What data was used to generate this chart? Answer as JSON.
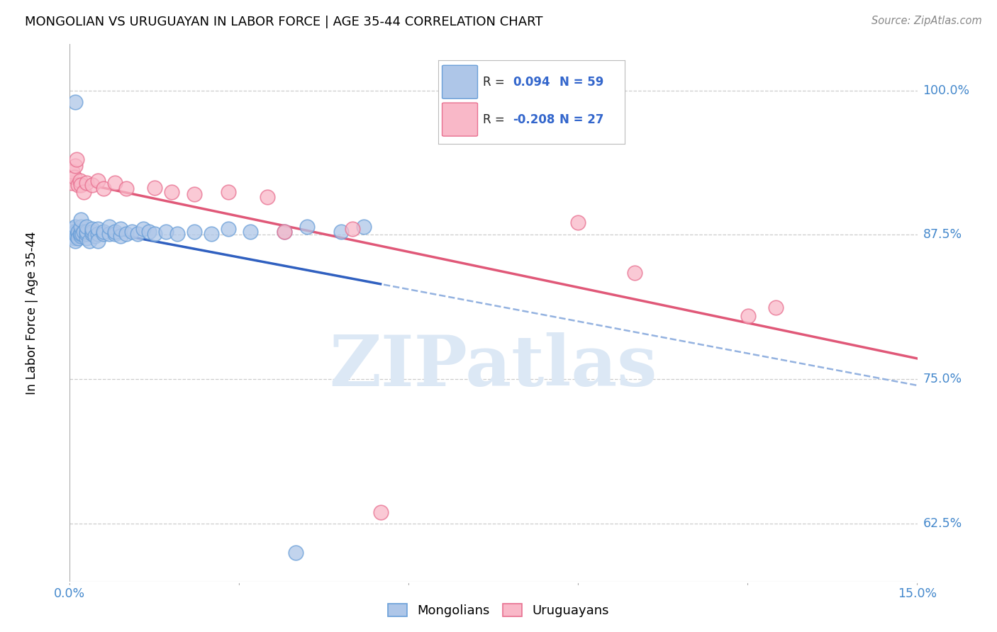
{
  "title": "MONGOLIAN VS URUGUAYAN IN LABOR FORCE | AGE 35-44 CORRELATION CHART",
  "source": "Source: ZipAtlas.com",
  "ylabel": "In Labor Force | Age 35-44",
  "yticks": [
    0.625,
    0.75,
    0.875,
    1.0
  ],
  "ytick_labels": [
    "62.5%",
    "75.0%",
    "87.5%",
    "100.0%"
  ],
  "xmin": 0.0,
  "xmax": 0.15,
  "ymin": 0.575,
  "ymax": 1.04,
  "R_mongolian": 0.094,
  "N_mongolian": 59,
  "R_uruguayan": -0.208,
  "N_uruguayan": 27,
  "mongolian_face": "#aec6e8",
  "mongolian_edge": "#6a9fd8",
  "uruguayan_face": "#f9b8c8",
  "uruguayan_edge": "#e87090",
  "line_mongolian_solid": "#3060c0",
  "line_mongolian_dash": "#88aadd",
  "line_uruguayan": "#e05878",
  "watermark_color": "#dce8f5",
  "legend_mongolian": "Mongolians",
  "legend_uruguayan": "Uruguayans",
  "mon_x": [
    0.0002,
    0.0003,
    0.0005,
    0.0005,
    0.0007,
    0.0008,
    0.001,
    0.001,
    0.001,
    0.001,
    0.001,
    0.0012,
    0.0014,
    0.0015,
    0.0015,
    0.0018,
    0.002,
    0.002,
    0.002,
    0.002,
    0.0022,
    0.0025,
    0.003,
    0.003,
    0.003,
    0.003,
    0.0035,
    0.004,
    0.004,
    0.004,
    0.0045,
    0.005,
    0.005,
    0.005,
    0.006,
    0.006,
    0.007,
    0.007,
    0.008,
    0.008,
    0.009,
    0.009,
    0.01,
    0.011,
    0.012,
    0.013,
    0.014,
    0.015,
    0.017,
    0.019,
    0.022,
    0.025,
    0.028,
    0.032,
    0.038,
    0.042,
    0.048,
    0.052,
    0.04
  ],
  "mon_y": [
    0.876,
    0.878,
    0.874,
    0.88,
    0.876,
    0.872,
    0.87,
    0.876,
    0.878,
    0.882,
    0.99,
    0.874,
    0.876,
    0.878,
    0.872,
    0.876,
    0.874,
    0.876,
    0.882,
    0.888,
    0.876,
    0.878,
    0.872,
    0.876,
    0.878,
    0.882,
    0.87,
    0.876,
    0.878,
    0.88,
    0.874,
    0.876,
    0.88,
    0.87,
    0.876,
    0.878,
    0.876,
    0.882,
    0.876,
    0.878,
    0.874,
    0.88,
    0.876,
    0.878,
    0.876,
    0.88,
    0.878,
    0.876,
    0.878,
    0.876,
    0.878,
    0.876,
    0.88,
    0.878,
    0.878,
    0.882,
    0.878,
    0.882,
    0.6
  ],
  "uru_x": [
    0.0003,
    0.0005,
    0.0008,
    0.001,
    0.0012,
    0.0015,
    0.0018,
    0.002,
    0.0025,
    0.003,
    0.004,
    0.005,
    0.006,
    0.008,
    0.01,
    0.015,
    0.018,
    0.022,
    0.028,
    0.035,
    0.038,
    0.05,
    0.055,
    0.09,
    0.1,
    0.12,
    0.125
  ],
  "uru_y": [
    0.92,
    0.93,
    0.925,
    0.935,
    0.94,
    0.918,
    0.922,
    0.918,
    0.912,
    0.92,
    0.918,
    0.922,
    0.915,
    0.92,
    0.915,
    0.916,
    0.912,
    0.91,
    0.912,
    0.908,
    0.878,
    0.88,
    0.635,
    0.886,
    0.842,
    0.805,
    0.812
  ]
}
